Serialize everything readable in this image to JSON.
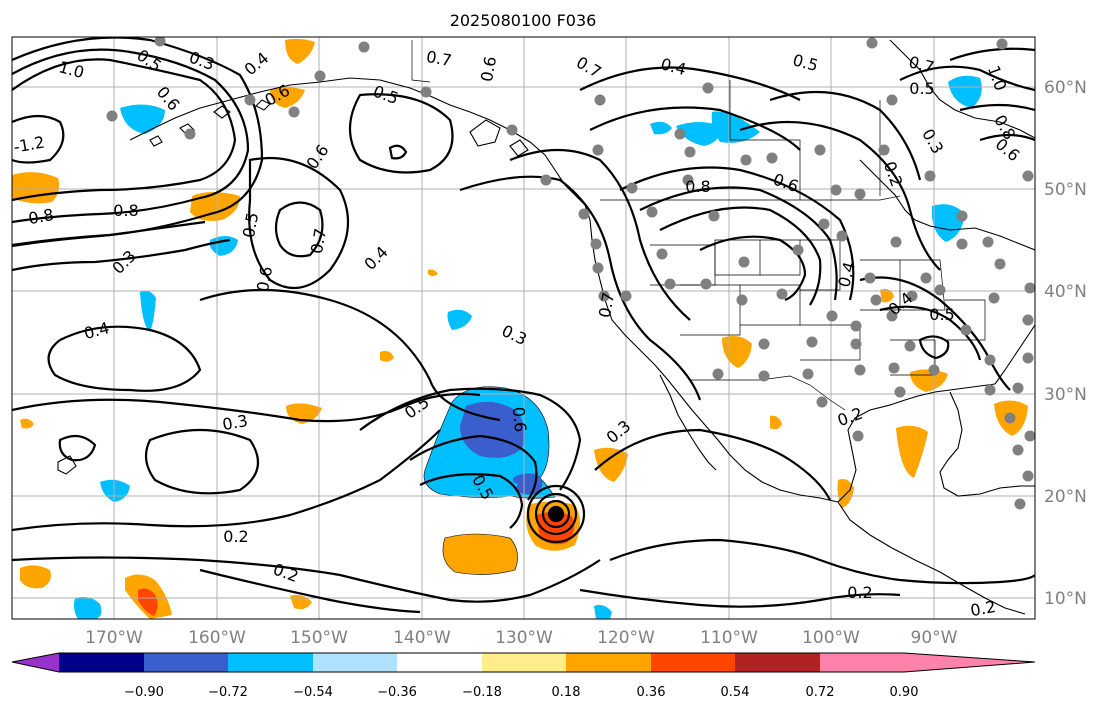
{
  "title": "2025080100 F036",
  "lon_labels": [
    "170°W",
    "160°W",
    "150°W",
    "140°W",
    "130°W",
    "120°W",
    "110°W",
    "100°W",
    "90°W"
  ],
  "lat_labels": [
    "60°N",
    "50°N",
    "40°N",
    "30°N",
    "20°N",
    "10°N"
  ],
  "colorbar": {
    "ticks": [
      "−0.90",
      "−0.72",
      "−0.54",
      "−0.36",
      "−0.18",
      "0.18",
      "0.36",
      "0.54",
      "0.72",
      "0.90"
    ],
    "colors": [
      "#9932CC",
      "#00008B",
      "#3A5FCD",
      "#00BFFF",
      "#B0E2FF",
      "#FFFFFF",
      "#FFEC8B",
      "#FFA500",
      "#FF4500",
      "#B22222",
      "#FF82AB"
    ]
  },
  "contour_labels": [
    {
      "text": "1.0"
    },
    {
      "text": "0.5"
    },
    {
      "text": "0.3"
    },
    {
      "text": "0.4"
    },
    {
      "text": "0.6"
    },
    {
      "text": "0.7"
    },
    {
      "text": "0.6"
    },
    {
      "text": "0.7"
    },
    {
      "text": "0.4"
    },
    {
      "text": "0.5"
    },
    {
      "text": "0.7"
    },
    {
      "text": "0.5"
    },
    {
      "text": "1.0"
    },
    {
      "text": "-1.2"
    },
    {
      "text": "0.6"
    },
    {
      "text": "0.5"
    },
    {
      "text": "0.6"
    },
    {
      "text": "0.8"
    },
    {
      "text": "0.8"
    },
    {
      "text": "0.3"
    },
    {
      "text": "0.5"
    },
    {
      "text": "0.7"
    },
    {
      "text": "0.6"
    },
    {
      "text": "0.4"
    },
    {
      "text": "0.4"
    },
    {
      "text": "0.3"
    },
    {
      "text": "0.3"
    },
    {
      "text": "0.5"
    },
    {
      "text": "0.6"
    },
    {
      "text": "0.5"
    },
    {
      "text": "0.3"
    },
    {
      "text": "0.2"
    },
    {
      "text": "0.2"
    },
    {
      "text": "0.8"
    },
    {
      "text": "0.6"
    },
    {
      "text": "0.4"
    },
    {
      "text": "0.3"
    },
    {
      "text": "0.2"
    },
    {
      "text": "0.4"
    },
    {
      "text": "0.5"
    },
    {
      "text": "0.2"
    },
    {
      "text": "0.2"
    },
    {
      "text": "0.2"
    },
    {
      "text": "0.7"
    },
    {
      "text": "0.8"
    },
    {
      "text": "0.6"
    }
  ]
}
